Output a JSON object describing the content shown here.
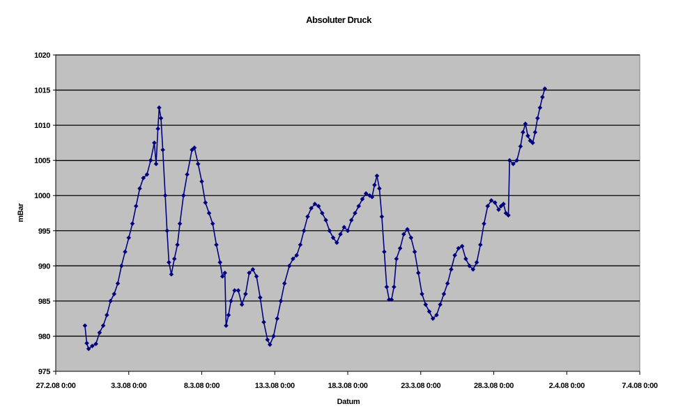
{
  "chart_data": {
    "type": "line",
    "title": "Absoluter Druck",
    "xlabel": "Datum",
    "ylabel": "mBar",
    "ylim": [
      975,
      1020
    ],
    "yticks": [
      975,
      980,
      985,
      990,
      995,
      1000,
      1005,
      1010,
      1015,
      1020
    ],
    "xticks": [
      "27.2.08 0:00",
      "3.3.08 0:00",
      "8.3.08 0:00",
      "13.3.08 0:00",
      "18.3.08 0:00",
      "23.3.08 0:00",
      "28.3.08 0:00",
      "2.4.08 0:00",
      "7.4.08 0:00"
    ],
    "x_range": [
      "27.2.08 0:00",
      "7.4.08 0:00"
    ],
    "grid": true,
    "legend": "none",
    "colors": {
      "plot_bg": "#c0c0c0",
      "line": "#000080",
      "grid": "#000000"
    },
    "series": [
      {
        "values": [
          [
            "29.2.08 0:00",
            981.5
          ],
          [
            "29.2.08 3:00",
            979
          ],
          [
            "29.2.08 6:00",
            978.2
          ],
          [
            "29.2.08 12:00",
            978.6
          ],
          [
            "29.2.08 18:00",
            978.9
          ],
          [
            "1.3.08 0:00",
            980.5
          ],
          [
            "1.3.08 6:00",
            981.5
          ],
          [
            "1.3.08 12:00",
            983
          ],
          [
            "1.3.08 18:00",
            985
          ],
          [
            "2.3.08 0:00",
            986
          ],
          [
            "2.3.08 6:00",
            987.5
          ],
          [
            "2.3.08 12:00",
            990
          ],
          [
            "2.3.08 18:00",
            992
          ],
          [
            "3.3.08 0:00",
            994
          ],
          [
            "3.3.08 6:00",
            996
          ],
          [
            "3.3.08 12:00",
            998.5
          ],
          [
            "3.3.08 18:00",
            1001
          ],
          [
            "4.3.08 0:00",
            1002.5
          ],
          [
            "4.3.08 6:00",
            1003
          ],
          [
            "4.3.08 12:00",
            1005
          ],
          [
            "4.3.08 18:00",
            1007.5
          ],
          [
            "4.3.08 21:00",
            1004.5
          ],
          [
            "5.3.08 0:00",
            1009.5
          ],
          [
            "5.3.08 2:00",
            1012.5
          ],
          [
            "5.3.08 5:00",
            1011
          ],
          [
            "5.3.08 8:00",
            1006.5
          ],
          [
            "5.3.08 12:00",
            1000
          ],
          [
            "5.3.08 15:00",
            995
          ],
          [
            "5.3.08 18:00",
            990.5
          ],
          [
            "5.3.08 22:00",
            988.8
          ],
          [
            "6.3.08 3:00",
            991
          ],
          [
            "6.3.08 8:00",
            993
          ],
          [
            "6.3.08 12:00",
            996
          ],
          [
            "6.3.08 18:00",
            1000
          ],
          [
            "7.3.08 0:00",
            1003
          ],
          [
            "7.3.08 8:00",
            1006.5
          ],
          [
            "7.3.08 12:00",
            1006.8
          ],
          [
            "7.3.08 18:00",
            1004.5
          ],
          [
            "8.3.08 0:00",
            1002
          ],
          [
            "8.3.08 6:00",
            999
          ],
          [
            "8.3.08 12:00",
            997.5
          ],
          [
            "8.3.08 18:00",
            996
          ],
          [
            "9.3.08 0:00",
            993
          ],
          [
            "9.3.08 6:00",
            990.5
          ],
          [
            "9.3.08 10:00",
            988.5
          ],
          [
            "9.3.08 14:00",
            989
          ],
          [
            "9.3.08 16:00",
            981.5
          ],
          [
            "9.3.08 20:00",
            983
          ],
          [
            "10.3.08 0:00",
            985
          ],
          [
            "10.3.08 6:00",
            986.5
          ],
          [
            "10.3.08 12:00",
            986.5
          ],
          [
            "10.3.08 18:00",
            984.5
          ],
          [
            "11.3.08 0:00",
            986
          ],
          [
            "11.3.08 6:00",
            989
          ],
          [
            "11.3.08 12:00",
            989.5
          ],
          [
            "11.3.08 18:00",
            988.5
          ],
          [
            "12.3.08 0:00",
            985.5
          ],
          [
            "12.3.08 6:00",
            982
          ],
          [
            "12.3.08 12:00",
            979.5
          ],
          [
            "12.3.08 16:00",
            978.8
          ],
          [
            "12.3.08 22:00",
            980
          ],
          [
            "13.3.08 4:00",
            982.5
          ],
          [
            "13.3.08 10:00",
            985
          ],
          [
            "13.3.08 16:00",
            987.5
          ],
          [
            "14.3.08 0:00",
            990
          ],
          [
            "14.3.08 6:00",
            991
          ],
          [
            "14.3.08 12:00",
            991.5
          ],
          [
            "14.3.08 18:00",
            993
          ],
          [
            "15.3.08 0:00",
            995
          ],
          [
            "15.3.08 6:00",
            997
          ],
          [
            "15.3.08 12:00",
            998.2
          ],
          [
            "15.3.08 18:00",
            998.8
          ],
          [
            "16.3.08 0:00",
            998.5
          ],
          [
            "16.3.08 6:00",
            997.5
          ],
          [
            "16.3.08 12:00",
            996.5
          ],
          [
            "16.3.08 18:00",
            995
          ],
          [
            "17.3.08 0:00",
            994
          ],
          [
            "17.3.08 6:00",
            993.3
          ],
          [
            "17.3.08 12:00",
            994.5
          ],
          [
            "17.3.08 18:00",
            995.5
          ],
          [
            "18.3.08 0:00",
            995
          ],
          [
            "18.3.08 6:00",
            996.5
          ],
          [
            "18.3.08 12:00",
            997.5
          ],
          [
            "18.3.08 18:00",
            998.5
          ],
          [
            "19.3.08 0:00",
            999.5
          ],
          [
            "19.3.08 6:00",
            1000.3
          ],
          [
            "19.3.08 12:00",
            1000
          ],
          [
            "19.3.08 16:00",
            999.8
          ],
          [
            "19.3.08 20:00",
            1001.5
          ],
          [
            "20.3.08 0:00",
            1002.8
          ],
          [
            "20.3.08 4:00",
            1001
          ],
          [
            "20.3.08 8:00",
            997
          ],
          [
            "20.3.08 12:00",
            992
          ],
          [
            "20.3.08 16:00",
            987
          ],
          [
            "20.3.08 20:00",
            985.2
          ],
          [
            "21.3.08 0:00",
            985.2
          ],
          [
            "21.3.08 4:00",
            987
          ],
          [
            "21.3.08 8:00",
            991
          ],
          [
            "21.3.08 14:00",
            992.5
          ],
          [
            "21.3.08 20:00",
            994.5
          ],
          [
            "22.3.08 2:00",
            995.2
          ],
          [
            "22.3.08 8:00",
            994
          ],
          [
            "22.3.08 14:00",
            992
          ],
          [
            "22.3.08 20:00",
            989
          ],
          [
            "23.3.08 2:00",
            986
          ],
          [
            "23.3.08 8:00",
            984.5
          ],
          [
            "23.3.08 14:00",
            983.5
          ],
          [
            "23.3.08 20:00",
            982.5
          ],
          [
            "24.3.08 2:00",
            983
          ],
          [
            "24.3.08 8:00",
            984.5
          ],
          [
            "24.3.08 14:00",
            986
          ],
          [
            "24.3.08 20:00",
            987.5
          ],
          [
            "25.3.08 2:00",
            989.5
          ],
          [
            "25.3.08 8:00",
            991.5
          ],
          [
            "25.3.08 14:00",
            992.5
          ],
          [
            "25.3.08 20:00",
            992.8
          ],
          [
            "26.3.08 2:00",
            991
          ],
          [
            "26.3.08 8:00",
            990
          ],
          [
            "26.3.08 14:00",
            989.5
          ],
          [
            "26.3.08 20:00",
            990.5
          ],
          [
            "27.3.08 2:00",
            993
          ],
          [
            "27.3.08 8:00",
            996
          ],
          [
            "27.3.08 14:00",
            998.5
          ],
          [
            "27.3.08 20:00",
            999.3
          ],
          [
            "28.3.08 2:00",
            999
          ],
          [
            "28.3.08 8:00",
            998
          ],
          [
            "28.3.08 12:00",
            998.5
          ],
          [
            "28.3.08 16:00",
            998.8
          ],
          [
            "28.3.08 20:00",
            997.5
          ],
          [
            "29.3.08 0:00",
            997.2
          ],
          [
            "29.3.08 2:00",
            1005
          ],
          [
            "29.3.08 8:00",
            1004.5
          ],
          [
            "29.3.08 14:00",
            1005
          ],
          [
            "29.3.08 20:00",
            1007
          ],
          [
            "30.3.08 0:00",
            1009
          ],
          [
            "30.3.08 4:00",
            1010.2
          ],
          [
            "30.3.08 8:00",
            1008.5
          ],
          [
            "30.3.08 12:00",
            1007.8
          ],
          [
            "30.3.08 16:00",
            1007.5
          ],
          [
            "30.3.08 20:00",
            1009
          ],
          [
            "31.3.08 0:00",
            1011
          ],
          [
            "31.3.08 4:00",
            1012.5
          ],
          [
            "31.3.08 8:00",
            1014
          ],
          [
            "31.3.08 12:00",
            1015.2
          ]
        ]
      }
    ]
  }
}
